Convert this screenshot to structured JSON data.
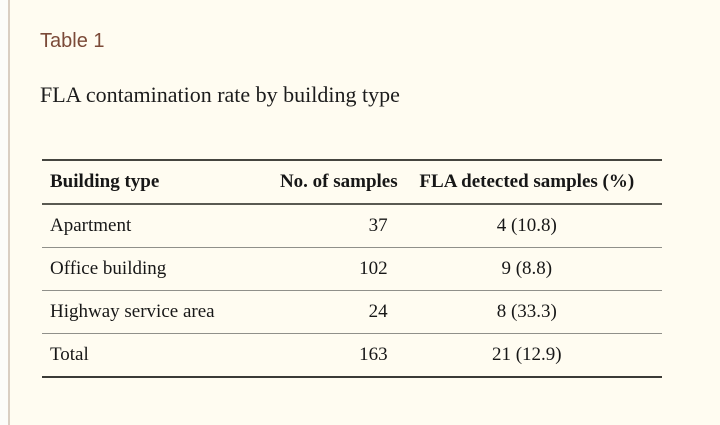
{
  "page": {
    "background_color": "#fffcf1",
    "accent_line_color": "#d9cec2",
    "label_color": "#7b4a38"
  },
  "section": {
    "label": "Table 1",
    "caption": "FLA contamination rate by building type"
  },
  "table": {
    "columns": [
      {
        "label": "Building type",
        "align": "left"
      },
      {
        "label": "No. of samples",
        "align": "right"
      },
      {
        "label": "FLA detected samples (%)",
        "align": "center"
      }
    ],
    "rows": [
      {
        "building_type": "Apartment",
        "no_of_samples": "37",
        "fla_detected": "4 (10.8)"
      },
      {
        "building_type": "Office building",
        "no_of_samples": "102",
        "fla_detected": "9 (8.8)"
      },
      {
        "building_type": "Highway service area",
        "no_of_samples": "24",
        "fla_detected": "8 (33.3)"
      },
      {
        "building_type": "Total",
        "no_of_samples": "163",
        "fla_detected": "21 (12.9)"
      }
    ]
  }
}
